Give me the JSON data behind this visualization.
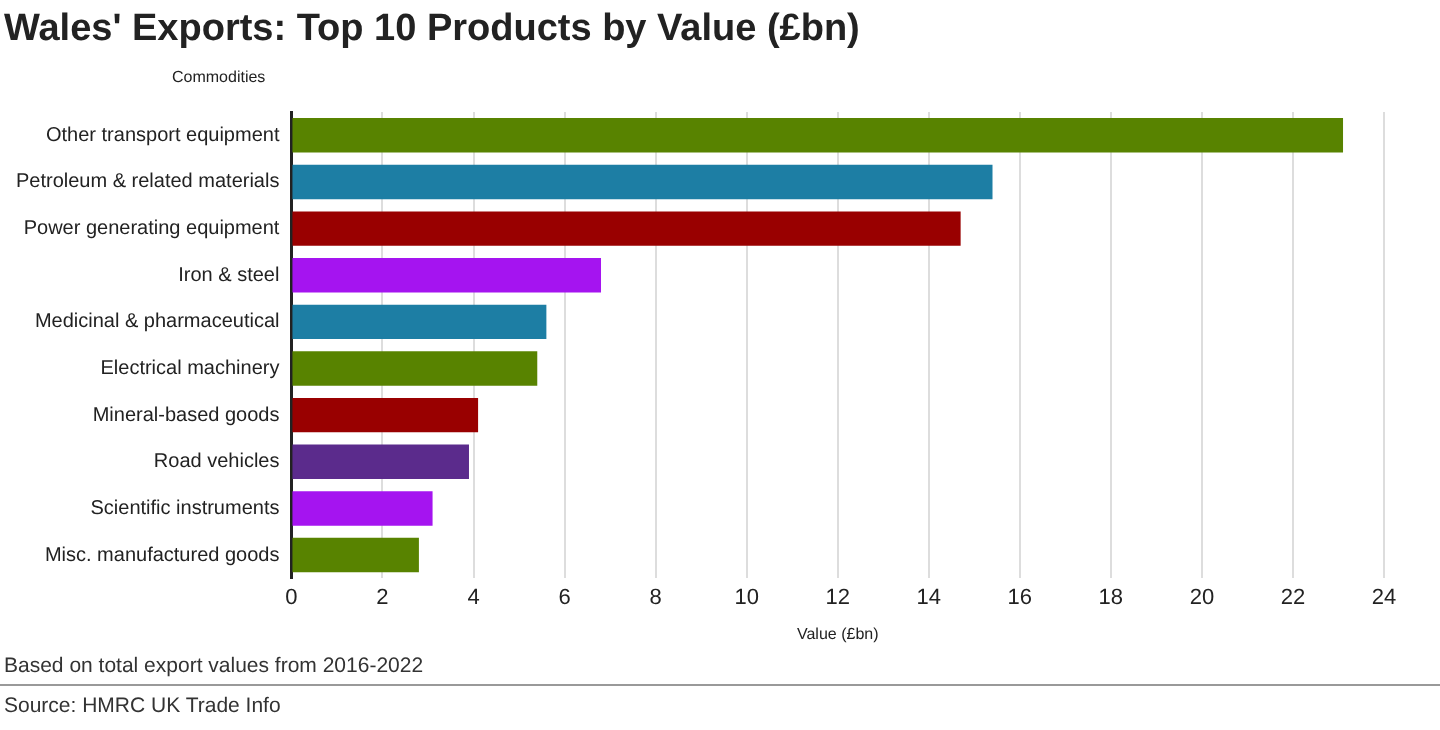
{
  "chart_data": {
    "type": "bar",
    "orientation": "horizontal",
    "title": "Wales' Exports: Top 10 Products by Value (£bn)",
    "ylabel": "Commodities",
    "xlabel": "Value (£bn)",
    "categories": [
      "Other transport equipment",
      "Petroleum & related materials",
      "Power generating equipment",
      "Iron & steel",
      "Medicinal & pharmaceutical",
      "Electrical machinery",
      "Mineral-based goods",
      "Road vehicles",
      "Scientific instruments",
      "Misc. manufactured goods"
    ],
    "values": [
      23.1,
      15.4,
      14.7,
      6.8,
      5.6,
      5.4,
      4.1,
      3.9,
      3.1,
      2.8
    ],
    "colors": [
      "#588300",
      "#1d7ea4",
      "#990000",
      "#a514f0",
      "#1d7ea4",
      "#588300",
      "#990000",
      "#5b2b8c",
      "#a514f0",
      "#588300"
    ],
    "xlim": [
      0,
      24
    ],
    "xticks": [
      0,
      2,
      4,
      6,
      8,
      10,
      12,
      14,
      16,
      18,
      20,
      22,
      24
    ],
    "grid": "x",
    "legend": false,
    "annotations": [
      "Based on total export values from 2016-2022",
      "Source: HMRC UK Trade Info"
    ]
  }
}
